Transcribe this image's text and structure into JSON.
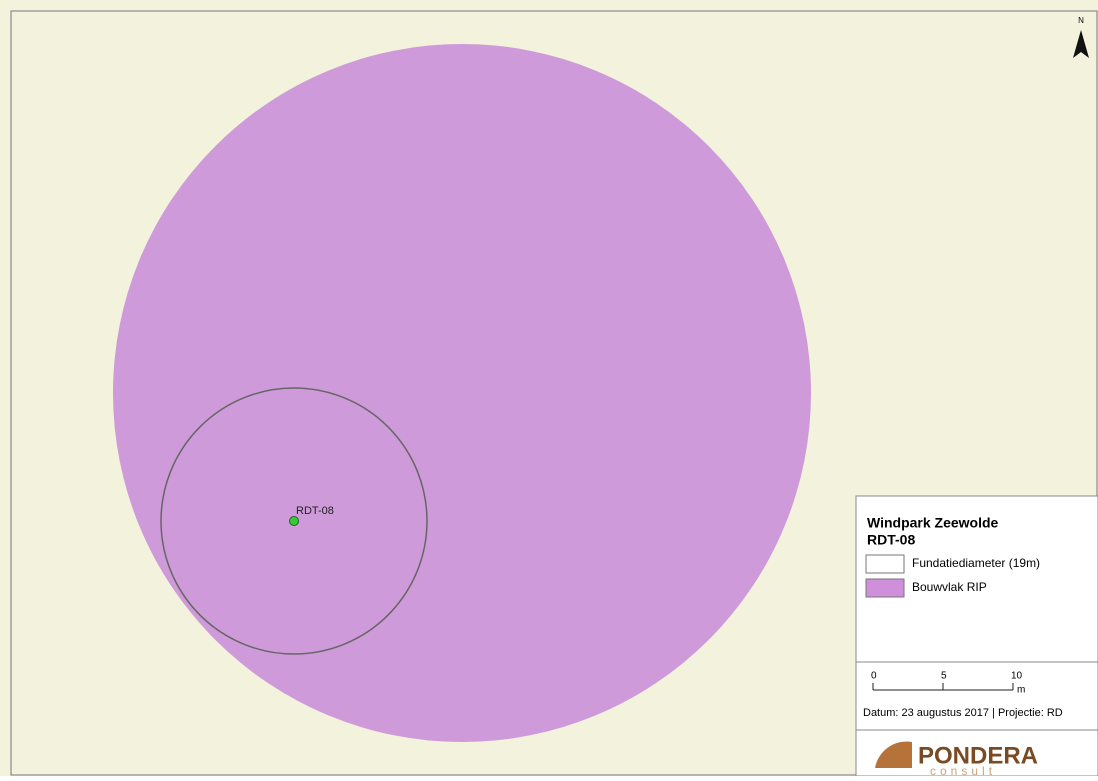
{
  "north": "N",
  "turbine": {
    "label": "RDT-08"
  },
  "legend": {
    "title": "Windpark Zeewolde",
    "subtitle": "RDT-08",
    "items": [
      {
        "label": "Fundatiediameter (19m)",
        "color": "#ffffff"
      },
      {
        "label": "Bouwvlak RIP",
        "color": "#d08fdb"
      }
    ]
  },
  "scale": {
    "ticks": [
      0,
      5,
      10
    ],
    "unit": "m"
  },
  "footer": "Datum: 23 augustus 2017 | Projectie: RD",
  "logo": {
    "name": "PONDERA",
    "sub": "consult"
  }
}
